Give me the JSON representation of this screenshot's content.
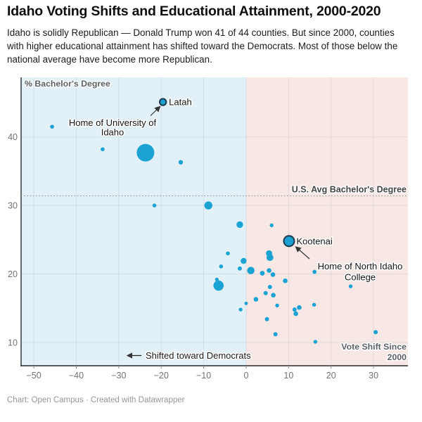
{
  "header": {
    "title": "Idaho Voting Shifts and Educational Attainment, 2000-2020",
    "subtitle_lines": [
      "Idaho is solidly Republican — Donald Trump won 41 of 44 counties. But since 2000, counties",
      "with higher educational attainment has shifted toward the Democrats. Most of those below the",
      "national average have become more Republican."
    ]
  },
  "footer": {
    "credit": "Chart: Open Campus · Created with Datawrapper"
  },
  "colors": {
    "dot": "#1ba3d3",
    "highlight_dot_fill": "#1c9fd1",
    "highlight_dot_stroke": "#1d3a4f",
    "region_democrat": "#e2f1f8",
    "region_republican": "#f8e8e5",
    "gridline": "rgba(96,125,139,0.14)",
    "axis_line": "#2b2b2b",
    "tick_text": "#6f7377",
    "axis_title_text": "#5d6268",
    "annotation_text": "#151515",
    "reference_line": "#9b9b9b",
    "arrow": "#333333"
  },
  "chart_data": {
    "type": "scatter",
    "title": "Idaho Voting Shifts and Educational Attainment, 2000-2020",
    "xlabel": "Vote Shift Since 2000",
    "ylabel": "% Bachelor's Degree",
    "xlim": [
      -53,
      38.1
    ],
    "ylim": [
      6.6,
      48.7
    ],
    "grid": true,
    "x_ticks": {
      "values": [
        -50,
        -40,
        -30,
        -20,
        -10,
        0,
        10,
        20,
        30
      ],
      "labels": [
        "−50",
        "−40",
        "−30",
        "−20",
        "−10",
        "0",
        "10",
        "20",
        "30"
      ]
    },
    "y_ticks": {
      "values": [
        40,
        30,
        20,
        10
      ],
      "labels": [
        "40",
        "30",
        "20",
        "10"
      ]
    },
    "reference_line": {
      "y": 31.4,
      "label": "U.S. Avg Bachelor's Degree"
    },
    "regions": [
      {
        "name": "shifted-democrat",
        "x_range": [
          -53,
          0
        ],
        "color_key": "region_democrat"
      },
      {
        "name": "shifted-republican",
        "x_range": [
          0,
          38.1
        ],
        "color_key": "region_republican"
      }
    ],
    "annotations": {
      "latah": {
        "label": "Latah",
        "note_lines": [
          "Home of University of",
          "Idaho"
        ]
      },
      "kootenai": {
        "label": "Kootenai",
        "note_lines": [
          "Home of North Idaho",
          "College"
        ]
      },
      "direction": {
        "label": "Shifted toward Democrats"
      },
      "x_axis_label_lines": [
        "Vote Shift Since",
        "2000"
      ]
    },
    "points": [
      {
        "x": -19.6,
        "y": 45.1,
        "r": 4.7,
        "name": "Latah",
        "highlight": true
      },
      {
        "x": -45.7,
        "y": 41.5,
        "r": 2.8
      },
      {
        "x": -33.8,
        "y": 38.2,
        "r": 2.8
      },
      {
        "x": -23.7,
        "y": 37.7,
        "r": 12.5
      },
      {
        "x": -15.4,
        "y": 36.3,
        "r": 3.2
      },
      {
        "x": -21.6,
        "y": 30.0,
        "r": 2.8
      },
      {
        "x": -8.9,
        "y": 30.0,
        "r": 5.7
      },
      {
        "x": -1.5,
        "y": 27.2,
        "r": 4.7
      },
      {
        "x": 6.0,
        "y": 27.1,
        "r": 2.7
      },
      {
        "x": 10.1,
        "y": 24.8,
        "r": 7.5,
        "name": "Kootenai",
        "highlight": true
      },
      {
        "x": -4.3,
        "y": 23.0,
        "r": 2.8
      },
      {
        "x": 5.4,
        "y": 23.0,
        "r": 4.4
      },
      {
        "x": 5.6,
        "y": 22.4,
        "r": 4.9
      },
      {
        "x": -0.6,
        "y": 21.9,
        "r": 4.2
      },
      {
        "x": -5.9,
        "y": 21.1,
        "r": 2.8
      },
      {
        "x": -1.5,
        "y": 20.8,
        "r": 3.0
      },
      {
        "x": 1.1,
        "y": 20.5,
        "r": 5.3
      },
      {
        "x": 3.8,
        "y": 20.1,
        "r": 3.4
      },
      {
        "x": 5.4,
        "y": 20.5,
        "r": 3.3
      },
      {
        "x": 6.3,
        "y": 19.9,
        "r": 3.3
      },
      {
        "x": 16.1,
        "y": 20.3,
        "r": 2.9
      },
      {
        "x": -6.9,
        "y": 19.2,
        "r": 2.6
      },
      {
        "x": -6.5,
        "y": 18.3,
        "r": 7.3
      },
      {
        "x": 9.2,
        "y": 19.0,
        "r": 3.3
      },
      {
        "x": 5.6,
        "y": 18.1,
        "r": 3.0
      },
      {
        "x": 4.6,
        "y": 17.2,
        "r": 3.0
      },
      {
        "x": 6.4,
        "y": 16.9,
        "r": 3.3
      },
      {
        "x": 2.3,
        "y": 16.3,
        "r": 3.3
      },
      {
        "x": 0.0,
        "y": 15.7,
        "r": 2.4
      },
      {
        "x": 7.3,
        "y": 15.4,
        "r": 2.7
      },
      {
        "x": -1.3,
        "y": 14.8,
        "r": 2.7
      },
      {
        "x": 11.4,
        "y": 14.8,
        "r": 3.0
      },
      {
        "x": 12.5,
        "y": 15.1,
        "r": 3.3
      },
      {
        "x": 11.7,
        "y": 14.2,
        "r": 3.3
      },
      {
        "x": 16.0,
        "y": 15.5,
        "r": 2.7
      },
      {
        "x": 24.6,
        "y": 18.2,
        "r": 2.7
      },
      {
        "x": 4.9,
        "y": 13.4,
        "r": 3.0
      },
      {
        "x": 6.9,
        "y": 11.2,
        "r": 3.0
      },
      {
        "x": 16.3,
        "y": 10.1,
        "r": 2.7
      },
      {
        "x": 30.5,
        "y": 11.5,
        "r": 3.0
      }
    ]
  }
}
